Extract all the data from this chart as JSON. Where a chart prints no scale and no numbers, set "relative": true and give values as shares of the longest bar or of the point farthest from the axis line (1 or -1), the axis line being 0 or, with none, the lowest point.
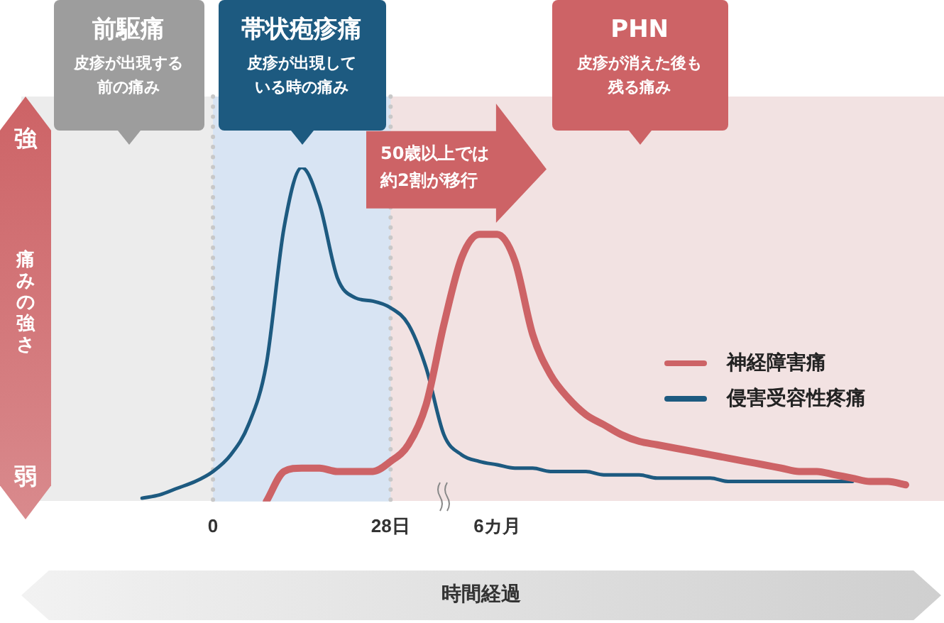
{
  "chart_data": {
    "type": "line",
    "relative": true,
    "xlabel": "時間経過",
    "categories": [
      null,
      null,
      null,
      null,
      "0",
      null,
      null,
      null,
      null,
      null,
      null,
      null,
      null,
      null,
      "28日",
      null,
      null,
      null,
      null,
      null,
      "6カ月",
      null,
      null,
      null,
      null,
      null,
      null,
      null,
      null,
      null,
      null,
      null,
      null,
      null,
      null,
      null,
      null,
      null,
      null,
      null,
      null,
      null,
      null,
      null
    ],
    "series": [
      {
        "name": "神経障害痛",
        "color": "#cd6366",
        "values": [
          null,
          null,
          null,
          null,
          null,
          null,
          null,
          0.0,
          0.09,
          0.1,
          0.1,
          0.09,
          0.09,
          0.09,
          0.12,
          0.17,
          0.29,
          0.53,
          0.73,
          0.8,
          0.8,
          0.72,
          0.5,
          0.38,
          0.31,
          0.26,
          0.23,
          0.2,
          0.18,
          0.17,
          0.16,
          0.15,
          0.14,
          0.13,
          0.12,
          0.11,
          0.1,
          0.09,
          0.09,
          0.08,
          0.07,
          0.06,
          0.06,
          0.05
        ]
      },
      {
        "name": "侵害受容性疼痛",
        "color": "#1d5a80",
        "values": [
          0.01,
          0.02,
          0.04,
          0.06,
          0.09,
          0.14,
          0.23,
          0.41,
          0.82,
          1.0,
          0.89,
          0.67,
          0.61,
          0.6,
          0.58,
          0.53,
          0.4,
          0.2,
          0.14,
          0.12,
          0.11,
          0.1,
          0.1,
          0.09,
          0.09,
          0.09,
          0.08,
          0.08,
          0.08,
          0.07,
          0.07,
          0.07,
          0.07,
          0.06,
          0.06,
          0.06,
          0.06,
          0.06,
          0.06,
          0.06,
          0.06,
          null,
          null,
          null
        ]
      }
    ],
    "bands": [
      {
        "axis": "x",
        "from": "0",
        "to": "28日",
        "label": "帯状疱疹痛",
        "color": "#d8e4f3"
      }
    ],
    "ref_lines": [
      {
        "axis": "x",
        "value": "0",
        "color": "#c8c8c8",
        "line_style": "dotted"
      },
      {
        "axis": "x",
        "value": "28日",
        "color": "#c8c8c8",
        "line_style": "dotted"
      }
    ],
    "annotations": [
      "強",
      "痛みの強さ",
      "弱",
      "50歳以上では約2割が移行",
      "前駆痛",
      "皮疹が出現する前の痛み",
      "皮疹が出現している時の痛み",
      "PHN",
      "皮疹が消えた後も残る痛み"
    ],
    "legend": "right",
    "line_style": "solid",
    "marker": "none"
  }
}
